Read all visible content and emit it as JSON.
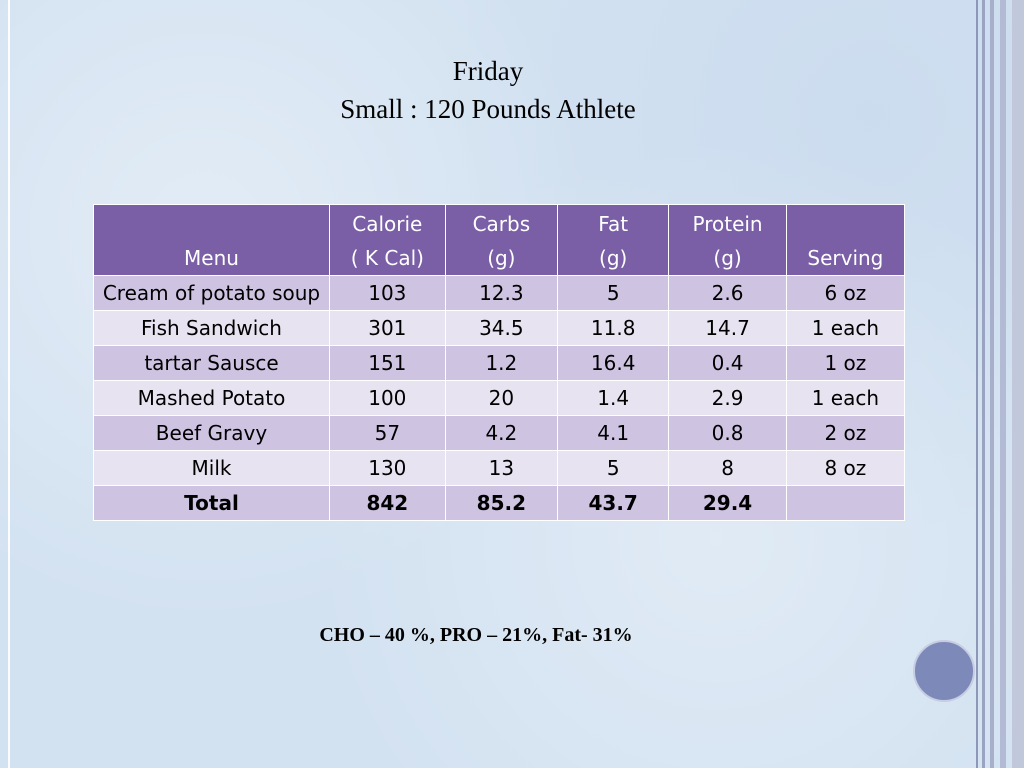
{
  "title": {
    "day": "Friday",
    "subtitle": "Small : 120 Pounds Athlete"
  },
  "table": {
    "headers": {
      "menu": "Menu",
      "calorie_l1": "Calorie",
      "calorie_l2": "( K Cal)",
      "carbs_l1": "Carbs",
      "carbs_l2": "(g)",
      "fat_l1": "Fat",
      "fat_l2": "(g)",
      "protein_l1": "Protein",
      "protein_l2": "(g)",
      "serving": "Serving"
    },
    "rows": [
      {
        "menu": "Cream of potato soup",
        "calorie": "103",
        "carbs": "12.3",
        "fat": "5",
        "protein": "2.6",
        "serving": "6 oz"
      },
      {
        "menu": "Fish Sandwich",
        "calorie": "301",
        "carbs": "34.5",
        "fat": "11.8",
        "protein": "14.7",
        "serving": "1 each"
      },
      {
        "menu": "tartar Sausce",
        "calorie": "151",
        "carbs": "1.2",
        "fat": "16.4",
        "protein": "0.4",
        "serving": "1 oz"
      },
      {
        "menu": "Mashed Potato",
        "calorie": "100",
        "carbs": "20",
        "fat": "1.4",
        "protein": "2.9",
        "serving": "1 each"
      },
      {
        "menu": "Beef Gravy",
        "calorie": "57",
        "carbs": "4.2",
        "fat": "4.1",
        "protein": "0.8",
        "serving": "2 oz"
      },
      {
        "menu": "Milk",
        "calorie": "130",
        "carbs": "13",
        "fat": "5",
        "protein": "8",
        "serving": "8 oz"
      }
    ],
    "total": {
      "menu": "Total",
      "calorie": "842",
      "carbs": "85.2",
      "fat": "43.7",
      "protein": "29.4",
      "serving": ""
    }
  },
  "summary": "CHO – 40 %, PRO – 21%, Fat- 31%",
  "colors": {
    "header_bg": "#7a5fa6",
    "row_odd": "#cfc3e2",
    "row_even": "#e8e3f1",
    "slide_bg": "#d3e2f1",
    "circle": "#7d89b8"
  }
}
